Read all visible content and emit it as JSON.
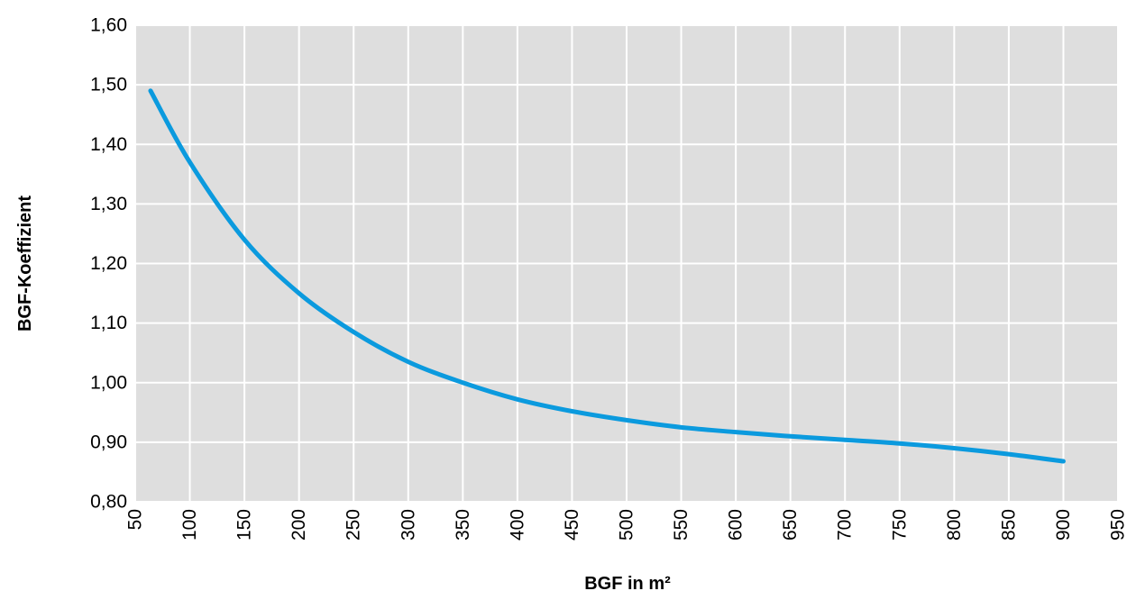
{
  "chart_data": {
    "type": "line",
    "xlabel": "BGF in m²",
    "ylabel": "BGF-Koeffizient",
    "xlim": [
      50,
      950
    ],
    "ylim": [
      0.8,
      1.6
    ],
    "x_ticks": [
      50,
      100,
      150,
      200,
      250,
      300,
      350,
      400,
      450,
      500,
      550,
      600,
      650,
      700,
      750,
      800,
      850,
      900,
      950
    ],
    "y_ticks": [
      0.8,
      0.9,
      1.0,
      1.1,
      1.2,
      1.3,
      1.4,
      1.5,
      1.6
    ],
    "x_tick_labels": [
      "50",
      "100",
      "150",
      "200",
      "250",
      "300",
      "350",
      "400",
      "450",
      "500",
      "550",
      "600",
      "650",
      "700",
      "750",
      "800",
      "850",
      "900",
      "950"
    ],
    "y_tick_labels": [
      "0,80",
      "0,90",
      "1,00",
      "1,10",
      "1,20",
      "1,30",
      "1,40",
      "1,50",
      "1,60"
    ],
    "grid": true,
    "legend": false,
    "colors": {
      "plot_background": "#dedede",
      "grid": "#ffffff",
      "line": "#0b9ade"
    },
    "series": [
      {
        "x": [
          64,
          100,
          150,
          200,
          250,
          300,
          350,
          400,
          450,
          500,
          550,
          600,
          650,
          700,
          750,
          800,
          850,
          900
        ],
        "y": [
          1.49,
          1.37,
          1.24,
          1.15,
          1.085,
          1.035,
          1.0,
          0.972,
          0.952,
          0.937,
          0.925,
          0.917,
          0.91,
          0.904,
          0.898,
          0.89,
          0.88,
          0.868
        ]
      }
    ]
  }
}
